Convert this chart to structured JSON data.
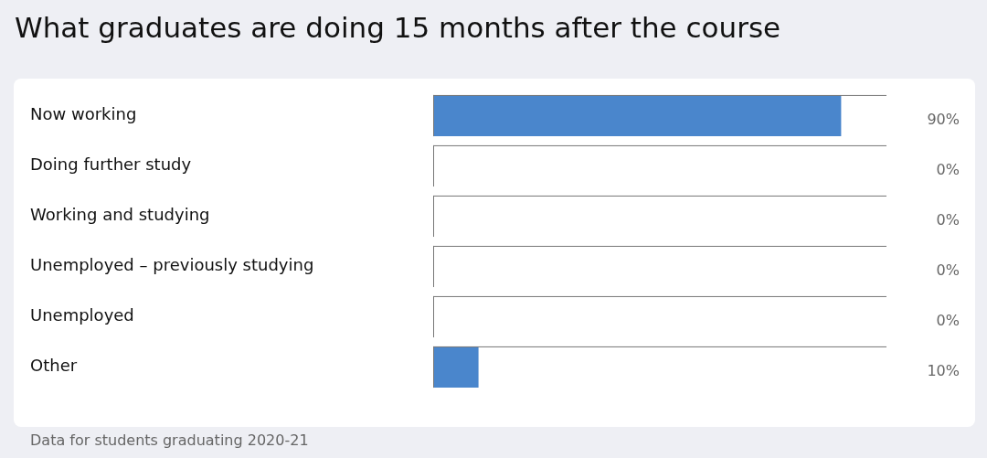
{
  "chart_data": {
    "type": "bar",
    "orientation": "horizontal",
    "title": "What graduates are doing 15 months after the course",
    "categories": [
      "Now working",
      "Doing further study",
      "Working and studying",
      "Unemployed – previously studying",
      "Unemployed",
      "Other"
    ],
    "values": [
      90,
      0,
      0,
      0,
      0,
      10
    ],
    "value_labels": [
      "90%",
      "0%",
      "0%",
      "0%",
      "0%",
      "10%"
    ],
    "color": "#4a86cc",
    "xlim": [
      0,
      100
    ],
    "grid": false,
    "legend": false,
    "annotations": [
      "Data for students graduating 2020-21"
    ]
  }
}
